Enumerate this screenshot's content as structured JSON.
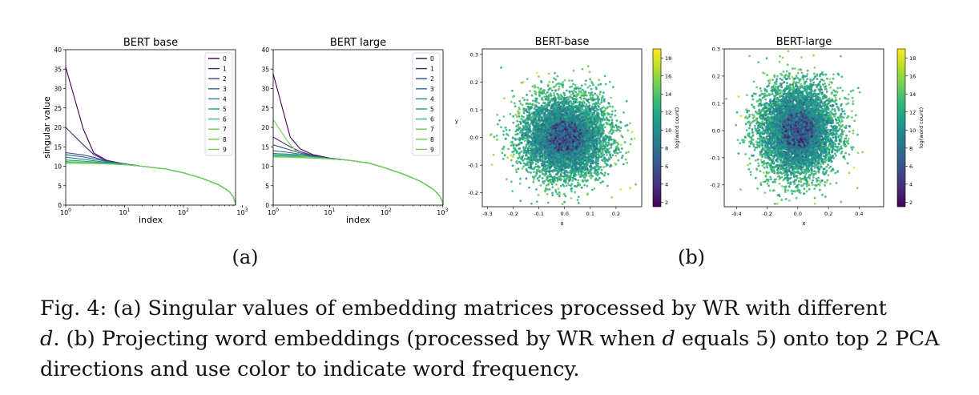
{
  "panels": [
    {
      "label": "(a)"
    },
    {
      "label": "(b)"
    }
  ],
  "caption": {
    "fig_label": "Fig. 4:",
    "part1": " (a) Singular values of embedding matrices processed by WR with different",
    "d1": "d",
    "part2": ". (b) Projecting word embeddings (processed by WR when ",
    "d2": "d",
    "part3": " equals 5) onto top 2 PCA directions and use color to indicate word frequency."
  },
  "colors": {
    "legend_series": [
      "#440154",
      "#482878",
      "#3e4989",
      "#31688e",
      "#26828e",
      "#1f9e89",
      "#35b779",
      "#6ece58",
      "#6ece58",
      "#6ece58"
    ],
    "viridis": [
      "#440154",
      "#482878",
      "#3e4989",
      "#31688e",
      "#26828e",
      "#1f9e89",
      "#35b779",
      "#6ece58",
      "#b5de2b",
      "#fde725"
    ]
  },
  "chart_data": [
    {
      "type": "line",
      "title": "BERT base",
      "xlabel": "index",
      "ylabel": "singular value",
      "xscale": "log",
      "xlim": [
        1,
        768
      ],
      "ylim": [
        0,
        40
      ],
      "yticks": [
        0,
        5,
        10,
        15,
        20,
        25,
        30,
        35,
        40
      ],
      "xtick_labels": [
        "10^0",
        "10^1",
        "10^2",
        "10^3"
      ],
      "legend": "top-right",
      "series": [
        {
          "name": "0",
          "x": [
            1,
            2,
            3,
            5,
            10,
            20,
            50,
            100,
            200,
            400,
            600,
            700,
            740,
            760,
            768
          ],
          "y": [
            35.5,
            19.5,
            13.4,
            11.5,
            10.6,
            10.0,
            9.3,
            8.3,
            7.0,
            5.2,
            3.5,
            2.2,
            1.2,
            0.5,
            0.0
          ]
        },
        {
          "name": "1",
          "x": [
            1,
            2,
            3,
            5,
            10,
            20,
            50,
            100,
            200,
            400,
            600,
            700,
            740,
            760,
            768
          ],
          "y": [
            20,
            15.5,
            13.0,
            11.4,
            10.6,
            10.0,
            9.3,
            8.3,
            7.0,
            5.2,
            3.5,
            2.2,
            1.2,
            0.5,
            0.0
          ]
        },
        {
          "name": "2",
          "x": [
            1,
            2,
            3,
            5,
            10,
            20,
            50,
            100,
            200,
            400,
            600,
            700,
            740,
            760,
            768
          ],
          "y": [
            13.5,
            12.9,
            12.3,
            11.3,
            10.6,
            10.0,
            9.3,
            8.3,
            7.0,
            5.2,
            3.5,
            2.2,
            1.2,
            0.5,
            0.0
          ]
        },
        {
          "name": "3",
          "x": [
            1,
            2,
            3,
            5,
            10,
            20,
            50,
            100,
            200,
            400,
            600,
            700,
            740,
            760,
            768
          ],
          "y": [
            13.0,
            12.4,
            11.9,
            11.2,
            10.6,
            10.0,
            9.3,
            8.3,
            7.0,
            5.2,
            3.5,
            2.2,
            1.2,
            0.5,
            0.0
          ]
        },
        {
          "name": "4",
          "x": [
            1,
            2,
            3,
            5,
            10,
            20,
            50,
            100,
            200,
            400,
            600,
            700,
            740,
            760,
            768
          ],
          "y": [
            12.3,
            11.8,
            11.4,
            11.0,
            10.5,
            10.0,
            9.3,
            8.3,
            7.0,
            5.2,
            3.5,
            2.2,
            1.2,
            0.5,
            0.0
          ]
        },
        {
          "name": "5",
          "x": [
            1,
            2,
            3,
            5,
            10,
            20,
            50,
            100,
            200,
            400,
            600,
            700,
            740,
            760,
            768
          ],
          "y": [
            11.6,
            11.3,
            11.1,
            10.8,
            10.5,
            10.0,
            9.3,
            8.3,
            7.0,
            5.2,
            3.5,
            2.2,
            1.2,
            0.5,
            0.0
          ]
        },
        {
          "name": "6",
          "x": [
            1,
            2,
            3,
            5,
            10,
            20,
            50,
            100,
            200,
            400,
            600,
            700,
            740,
            760,
            768
          ],
          "y": [
            11.2,
            11.0,
            10.9,
            10.7,
            10.4,
            10.0,
            9.3,
            8.3,
            7.0,
            5.2,
            3.5,
            2.2,
            1.2,
            0.5,
            0.0
          ]
        },
        {
          "name": "7",
          "x": [
            1,
            2,
            3,
            5,
            10,
            20,
            50,
            100,
            200,
            400,
            600,
            700,
            740,
            760,
            768
          ],
          "y": [
            11.0,
            10.9,
            10.8,
            10.6,
            10.4,
            10.0,
            9.3,
            8.3,
            7.0,
            5.2,
            3.5,
            2.2,
            1.2,
            0.5,
            0.0
          ]
        },
        {
          "name": "8",
          "x": [
            1,
            2,
            3,
            5,
            10,
            20,
            50,
            100,
            200,
            400,
            600,
            700,
            740,
            760,
            768
          ],
          "y": [
            10.9,
            10.8,
            10.7,
            10.6,
            10.4,
            10.0,
            9.3,
            8.3,
            7.0,
            5.2,
            3.5,
            2.2,
            1.2,
            0.5,
            0.0
          ]
        },
        {
          "name": "9",
          "x": [
            1,
            2,
            3,
            5,
            10,
            20,
            50,
            100,
            200,
            400,
            600,
            700,
            740,
            760,
            768
          ],
          "y": [
            10.8,
            10.7,
            10.7,
            10.6,
            10.4,
            10.0,
            9.3,
            8.3,
            7.0,
            5.2,
            3.5,
            2.2,
            1.2,
            0.5,
            0.0
          ]
        }
      ]
    },
    {
      "type": "line",
      "title": "BERT large",
      "xlabel": "index",
      "ylabel": "",
      "xscale": "log",
      "xlim": [
        1,
        1024
      ],
      "ylim": [
        0,
        40
      ],
      "yticks": [
        0,
        5,
        10,
        15,
        20,
        25,
        30,
        35,
        40
      ],
      "xtick_labels": [
        "10^0",
        "10^1",
        "10^2",
        "10^3"
      ],
      "legend": "top-right",
      "series": [
        {
          "name": "0",
          "x": [
            1,
            2,
            3,
            5,
            10,
            20,
            50,
            100,
            200,
            400,
            700,
            900,
            980,
            1010,
            1024
          ],
          "y": [
            33.8,
            17.5,
            14.5,
            13.0,
            12.1,
            11.6,
            10.8,
            9.5,
            8.0,
            6.2,
            4.0,
            2.3,
            1.2,
            0.5,
            0.0
          ]
        },
        {
          "name": "1",
          "x": [
            1,
            2,
            3,
            5,
            10,
            20,
            50,
            100,
            200,
            400,
            700,
            900,
            980,
            1010,
            1024
          ],
          "y": [
            17.5,
            15.0,
            13.8,
            12.8,
            12.0,
            11.6,
            10.8,
            9.5,
            8.0,
            6.2,
            4.0,
            2.3,
            1.2,
            0.5,
            0.0
          ]
        },
        {
          "name": "2",
          "x": [
            1,
            2,
            3,
            5,
            10,
            20,
            50,
            100,
            200,
            400,
            700,
            900,
            980,
            1010,
            1024
          ],
          "y": [
            15.5,
            14.2,
            13.4,
            12.7,
            12.0,
            11.6,
            10.8,
            9.5,
            8.0,
            6.2,
            4.0,
            2.3,
            1.2,
            0.5,
            0.0
          ]
        },
        {
          "name": "3",
          "x": [
            1,
            2,
            3,
            5,
            10,
            20,
            50,
            100,
            200,
            400,
            700,
            900,
            980,
            1010,
            1024
          ],
          "y": [
            14.0,
            13.5,
            13.1,
            12.6,
            12.0,
            11.6,
            10.8,
            9.5,
            8.0,
            6.2,
            4.0,
            2.3,
            1.2,
            0.5,
            0.0
          ]
        },
        {
          "name": "4",
          "x": [
            1,
            2,
            3,
            5,
            10,
            20,
            50,
            100,
            200,
            400,
            700,
            900,
            980,
            1010,
            1024
          ],
          "y": [
            13.3,
            13.1,
            12.9,
            12.5,
            12.0,
            11.6,
            10.8,
            9.5,
            8.0,
            6.2,
            4.0,
            2.3,
            1.2,
            0.5,
            0.0
          ]
        },
        {
          "name": "5",
          "x": [
            1,
            2,
            3,
            5,
            10,
            20,
            50,
            100,
            200,
            400,
            700,
            900,
            980,
            1010,
            1024
          ],
          "y": [
            13.0,
            12.8,
            12.7,
            12.4,
            12.0,
            11.6,
            10.8,
            9.5,
            8.0,
            6.2,
            4.0,
            2.3,
            1.2,
            0.5,
            0.0
          ]
        },
        {
          "name": "6",
          "x": [
            1,
            2,
            3,
            5,
            10,
            20,
            50,
            100,
            200,
            400,
            700,
            900,
            980,
            1010,
            1024
          ],
          "y": [
            12.7,
            12.6,
            12.5,
            12.3,
            11.9,
            11.6,
            10.8,
            9.5,
            8.0,
            6.2,
            4.0,
            2.3,
            1.2,
            0.5,
            0.0
          ]
        },
        {
          "name": "7",
          "x": [
            1,
            2,
            3,
            5,
            10,
            20,
            50,
            100,
            200,
            400,
            700,
            900,
            980,
            1010,
            1024
          ],
          "y": [
            12.5,
            12.4,
            12.3,
            12.2,
            11.9,
            11.6,
            10.8,
            9.5,
            8.0,
            6.2,
            4.0,
            2.3,
            1.2,
            0.5,
            0.0
          ]
        },
        {
          "name": "8",
          "x": [
            1,
            2,
            3,
            5,
            10,
            20,
            50,
            100,
            200,
            400,
            700,
            900,
            980,
            1010,
            1024
          ],
          "y": [
            12.4,
            12.3,
            12.2,
            12.1,
            11.9,
            11.6,
            10.8,
            9.5,
            8.0,
            6.2,
            4.0,
            2.3,
            1.2,
            0.5,
            0.0
          ]
        },
        {
          "name": "9",
          "x": [
            1,
            2,
            3,
            5,
            10,
            20,
            50,
            100,
            200,
            400,
            700,
            900,
            980,
            1010,
            1024
          ],
          "y": [
            22.0,
            15.5,
            12.8,
            12.2,
            11.9,
            11.6,
            10.8,
            9.5,
            8.0,
            6.2,
            4.0,
            2.3,
            1.2,
            0.5,
            0.0
          ]
        }
      ]
    },
    {
      "type": "scatter",
      "title": "BERT-base",
      "xlabel": "x",
      "ylabel": "y",
      "xlim": [
        -0.32,
        0.3
      ],
      "ylim": [
        -0.25,
        0.32
      ],
      "xticks": [
        -0.3,
        -0.2,
        -0.1,
        0.0,
        0.1,
        0.2
      ],
      "yticks": [
        -0.2,
        -0.1,
        0.0,
        0.1,
        0.2,
        0.3
      ],
      "colorbar": {
        "label": "log(word count)",
        "min": 1.5,
        "max": 19,
        "ticks": [
          2,
          4,
          6,
          8,
          10,
          12,
          14,
          16,
          18
        ]
      },
      "points": {
        "count": 6000,
        "center": [
          0.0,
          0.0
        ],
        "spread": [
          0.085,
          0.075
        ],
        "radius": 0.3,
        "color_range": [
          2,
          18
        ],
        "dense_low_values_near_center": true
      }
    },
    {
      "type": "scatter",
      "title": "BERT-large",
      "xlabel": "x",
      "ylabel": "",
      "xlim": [
        -0.48,
        0.56
      ],
      "ylim": [
        -0.28,
        0.3
      ],
      "xticks": [
        -0.4,
        -0.2,
        0.0,
        0.2,
        0.4
      ],
      "yticks": [
        -0.2,
        -0.1,
        0.0,
        0.1,
        0.2,
        0.3
      ],
      "colorbar": {
        "label": "log(word count)",
        "min": 1.5,
        "max": 19,
        "ticks": [
          2,
          4,
          6,
          8,
          10,
          12,
          14,
          16,
          18
        ]
      },
      "points": {
        "count": 6000,
        "center": [
          0.0,
          0.0
        ],
        "spread": [
          0.13,
          0.085
        ],
        "radius": 0.3,
        "color_range": [
          2,
          18
        ],
        "dense_low_values_near_center": true
      }
    }
  ]
}
